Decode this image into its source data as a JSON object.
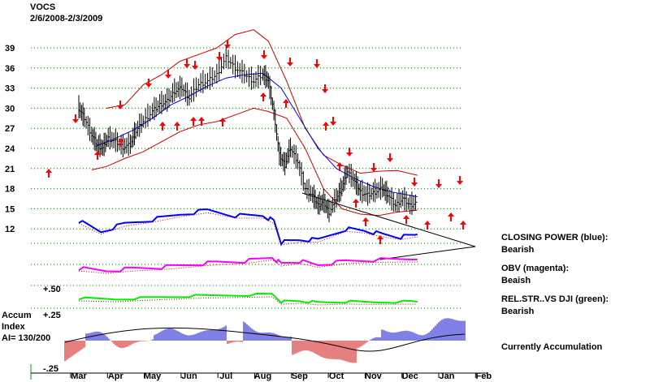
{
  "header": {
    "ticker": "VOCS",
    "date_range": "2/6/2008-2/3/2009"
  },
  "side_panel": {
    "closing_power_label": "CLOSING POWER (blue):",
    "closing_power_value": "Bearish",
    "obv_label": "OBV (magenta):",
    "obv_value": "Beaish",
    "relstr_label": "REL.STR..VS DJI (green):",
    "relstr_value": "Bearish",
    "accum_status": "Currently Accumulation"
  },
  "accum_panel": {
    "title_line1": "Accum",
    "title_line2": "Index",
    "ai_label": "AI= 130/200",
    "tick_plus50": "+.50",
    "tick_plus25": "+.25",
    "tick_minus25": "-.25"
  },
  "colors": {
    "price": "#000000",
    "bands": "#cc0000",
    "ma": "#0000ff",
    "closing_power": "#0000ff",
    "obv": "#ff00ff",
    "rel_str": "#00ee00",
    "grid": "#008000",
    "arrows": "#ff0000",
    "accum_pos": "#0000cc",
    "accum_neg": "#cc0000"
  },
  "chart_data": {
    "type": "line",
    "title": "VOCS",
    "subtitle": "2/6/2008-2/3/2009",
    "y_ticks": [
      "39",
      "36",
      "33",
      "30",
      "27",
      "24",
      "21",
      "18",
      "15",
      "12"
    ],
    "ylim": [
      8,
      42
    ],
    "x_ticks": [
      "Mar",
      "Apr",
      "May",
      "Jun",
      "Jul",
      "Aug",
      "Sep",
      "Oct",
      "Nov",
      "Dec",
      "Jan",
      "Feb"
    ],
    "grid": true,
    "series": [
      {
        "name": "price",
        "points": [
          [
            0,
            30
          ],
          [
            0.3,
            28.5
          ],
          [
            0.7,
            26
          ],
          [
            1.0,
            24.5
          ],
          [
            1.3,
            24
          ],
          [
            1.6,
            25.5
          ],
          [
            2.0,
            25
          ],
          [
            2.4,
            24.2
          ],
          [
            2.8,
            24.5
          ],
          [
            3.1,
            26.5
          ],
          [
            3.5,
            28
          ],
          [
            4.0,
            29.5
          ],
          [
            4.4,
            30.5
          ],
          [
            4.8,
            31
          ],
          [
            5.2,
            32.5
          ],
          [
            5.6,
            33
          ],
          [
            6.0,
            31.5
          ],
          [
            6.5,
            33.5
          ],
          [
            7.0,
            34
          ],
          [
            7.5,
            35
          ],
          [
            8.0,
            37.5
          ],
          [
            8.5,
            36
          ],
          [
            9.0,
            35
          ],
          [
            9.5,
            34
          ],
          [
            10.0,
            35
          ],
          [
            10.3,
            34
          ],
          [
            10.6,
            29.5
          ],
          [
            10.9,
            23
          ],
          [
            11.2,
            21.5
          ],
          [
            11.5,
            24
          ],
          [
            11.9,
            22
          ],
          [
            12.3,
            18
          ],
          [
            12.7,
            17
          ],
          [
            13.0,
            15.5
          ],
          [
            13.3,
            16
          ],
          [
            13.6,
            14.5
          ],
          [
            14.0,
            16.5
          ],
          [
            14.3,
            18
          ],
          [
            14.6,
            20.5
          ],
          [
            15.0,
            19
          ],
          [
            15.3,
            17.5
          ],
          [
            15.7,
            17
          ],
          [
            16.1,
            17.5
          ],
          [
            16.5,
            18
          ],
          [
            16.8,
            17
          ],
          [
            17.2,
            15.5
          ],
          [
            17.6,
            16.5
          ],
          [
            18.0,
            15.5
          ],
          [
            18.4,
            16
          ]
        ]
      },
      {
        "name": "moving-average",
        "points": [
          [
            0.9,
            24.3
          ],
          [
            2.0,
            25.5
          ],
          [
            3.0,
            26.8
          ],
          [
            4.0,
            28.5
          ],
          [
            5.0,
            30.5
          ],
          [
            6.0,
            31.8
          ],
          [
            7.0,
            33.3
          ],
          [
            8.0,
            34.5
          ],
          [
            9.0,
            35
          ],
          [
            10.0,
            35.2
          ],
          [
            11.0,
            33
          ],
          [
            12.0,
            28.5
          ],
          [
            13.0,
            24
          ],
          [
            14.0,
            21
          ],
          [
            15.0,
            19.5
          ],
          [
            16.0,
            18.3
          ],
          [
            17.0,
            17.5
          ],
          [
            18.4,
            16.8
          ]
        ]
      },
      {
        "name": "upper-band",
        "points": [
          [
            1.5,
            30
          ],
          [
            2.5,
            30.5
          ],
          [
            3.5,
            33.5
          ],
          [
            4.5,
            35
          ],
          [
            5.5,
            37
          ],
          [
            6.5,
            38
          ],
          [
            7.5,
            39
          ],
          [
            8.5,
            41
          ],
          [
            9.5,
            41.7
          ],
          [
            10.3,
            40
          ],
          [
            11.3,
            34
          ],
          [
            12.3,
            27
          ],
          [
            13.3,
            23
          ],
          [
            14.3,
            21.5
          ],
          [
            15.3,
            20.3
          ],
          [
            16.3,
            20.6
          ],
          [
            17.3,
            20.7
          ],
          [
            18.4,
            20
          ]
        ]
      },
      {
        "name": "lower-band",
        "points": [
          [
            0.7,
            20.8
          ],
          [
            1.5,
            21.3
          ],
          [
            2.5,
            22.5
          ],
          [
            3.5,
            23.5
          ],
          [
            4.5,
            25
          ],
          [
            5.5,
            26.5
          ],
          [
            6.5,
            27.5
          ],
          [
            7.5,
            28
          ],
          [
            8.5,
            29
          ],
          [
            9.5,
            30
          ],
          [
            10.3,
            29.5
          ],
          [
            11.3,
            28.5
          ],
          [
            12.3,
            24
          ],
          [
            13.3,
            18
          ],
          [
            14.3,
            15
          ],
          [
            15.3,
            14.2
          ],
          [
            16.3,
            14
          ],
          [
            17.3,
            14.5
          ],
          [
            18.4,
            14.8
          ]
        ]
      }
    ],
    "indicators": [
      {
        "name": "CLOSING POWER (blue)",
        "points": [
          [
            0,
            15
          ],
          [
            1.2,
            11
          ],
          [
            2.5,
            14
          ],
          [
            4.0,
            15.5
          ],
          [
            5.5,
            17.5
          ],
          [
            7.0,
            19
          ],
          [
            8.5,
            17
          ],
          [
            10.0,
            17
          ],
          [
            10.6,
            15
          ],
          [
            11.0,
            7
          ],
          [
            12.0,
            8
          ],
          [
            13.0,
            8
          ],
          [
            14.5,
            12
          ],
          [
            15.5,
            11.5
          ],
          [
            16.5,
            10
          ],
          [
            17.5,
            9
          ],
          [
            18.4,
            10
          ]
        ]
      },
      {
        "name": "OBV (magenta)",
        "points": [
          [
            0,
            3
          ],
          [
            1.5,
            2
          ],
          [
            3.0,
            3
          ],
          [
            4.5,
            3.5
          ],
          [
            6.0,
            4.5
          ],
          [
            7.5,
            5.5
          ],
          [
            9.0,
            6
          ],
          [
            10.5,
            7.5
          ],
          [
            11.0,
            5
          ],
          [
            12.0,
            6
          ],
          [
            13.0,
            4.5
          ],
          [
            14.5,
            6
          ],
          [
            16.0,
            6.5
          ],
          [
            18.4,
            6.7
          ]
        ]
      },
      {
        "name": "REL.STR..VS DJI (green)",
        "points": [
          [
            0,
            5
          ],
          [
            2.0,
            4.5
          ],
          [
            4.0,
            5.5
          ],
          [
            6.0,
            6.5
          ],
          [
            8.0,
            7
          ],
          [
            10.5,
            7.5
          ],
          [
            11.0,
            3
          ],
          [
            12.0,
            3.5
          ],
          [
            13.0,
            2.5
          ],
          [
            14.5,
            3
          ],
          [
            16.0,
            2.8
          ],
          [
            18.4,
            3
          ]
        ]
      }
    ],
    "accumulation_index": {
      "label": "AI= 130/200",
      "tick_labels": [
        "+.50",
        "+.25",
        "-.25"
      ],
      "current_state": "Currently Accumulation"
    }
  }
}
